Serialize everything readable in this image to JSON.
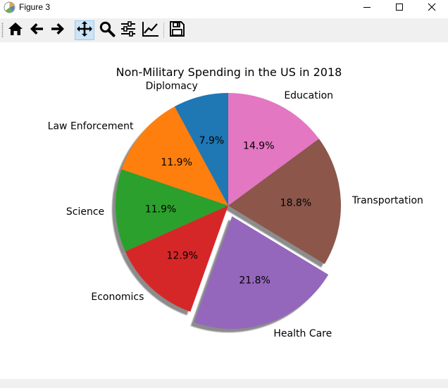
{
  "window": {
    "title": "Figure 3",
    "controls": [
      "minimize-icon",
      "maximize-icon",
      "close-icon"
    ]
  },
  "toolbar": {
    "buttons": [
      "home-icon",
      "back-arrow-icon",
      "forward-arrow-icon",
      "pan-icon",
      "zoom-icon",
      "configure-subplots-icon",
      "edit-axes-icon",
      "save-icon"
    ],
    "active": "pan-icon"
  },
  "chart_data": {
    "type": "pie",
    "title": "Non-Military Spending in the US in 2018",
    "labels": [
      "Diplomacy",
      "Law Enforcement",
      "Science",
      "Economics",
      "Health Care",
      "Transportation",
      "Education"
    ],
    "values": [
      7.9,
      11.9,
      11.9,
      12.9,
      21.8,
      18.8,
      14.9
    ],
    "pct_labels": [
      "7.9%",
      "11.9%",
      "11.9%",
      "12.9%",
      "21.8%",
      "18.8%",
      "14.9%"
    ],
    "colors": [
      "#1f77b4",
      "#ff7f0e",
      "#2ca02c",
      "#d62728",
      "#9467bd",
      "#8c564b",
      "#e377c2"
    ],
    "explode": [
      0,
      0,
      0,
      0,
      0.1,
      0,
      0
    ],
    "start_angle_deg": 90,
    "counterclockwise": true,
    "shadow": true
  }
}
